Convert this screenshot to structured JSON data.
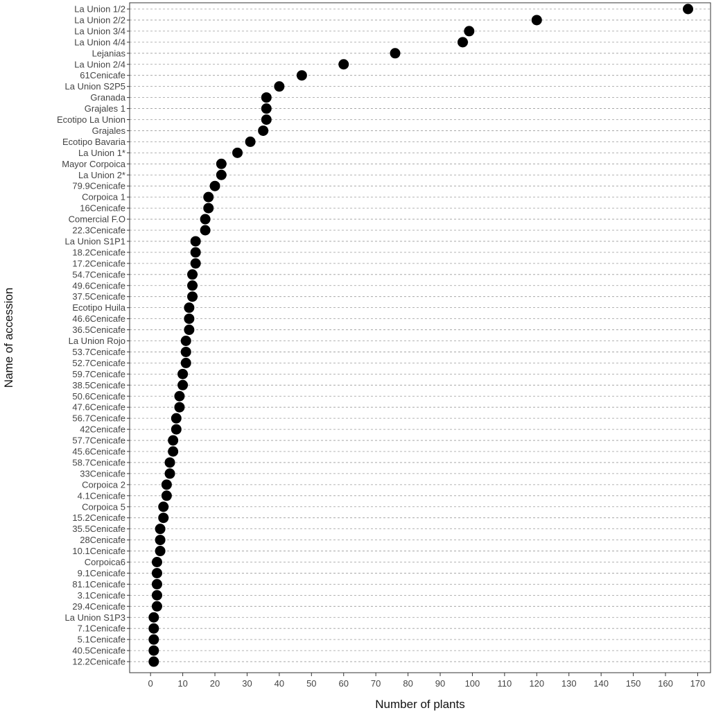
{
  "chart_data": {
    "type": "scatter",
    "xlabel": "Number of plants",
    "ylabel": "Name of accession",
    "xlim": [
      -6.5,
      174
    ],
    "xticks": [
      0,
      10,
      20,
      30,
      40,
      50,
      60,
      70,
      80,
      90,
      100,
      110,
      120,
      130,
      140,
      150,
      160,
      170
    ],
    "grid": "horizontal dashed",
    "legend": "none",
    "point_color": "#000000",
    "categories": [
      "La Union 1/2",
      "La Union 2/2",
      "La Union 3/4",
      "La Union 4/4",
      "Lejanias",
      "La Union 2/4",
      "61Cenicafe",
      "La Union S2P5",
      "Granada",
      "Grajales 1",
      "Ecotipo La Union",
      "Grajales",
      "Ecotipo Bavaria",
      "La Union 1*",
      "Mayor Corpoica",
      "La Union 2*",
      "79.9Cenicafe",
      "Corpoica 1",
      "16Cenicafe",
      "Comercial F.O",
      "22.3Cenicafe",
      "La Union S1P1",
      "18.2Cenicafe",
      "17.2Cenicafe",
      "54.7Cenicafe",
      "49.6Cenicafe",
      "37.5Cenicafe",
      "Ecotipo Huila",
      "46.6Cenicafe",
      "36.5Cenicafe",
      "La Union Rojo",
      "53.7Cenicafe",
      "52.7Cenicafe",
      "59.7Cenicafe",
      "38.5Cenicafe",
      "50.6Cenicafe",
      "47.6Cenicafe",
      "56.7Cenicafe",
      "42Cenicafe",
      "57.7Cenicafe",
      "45.6Cenicafe",
      "58.7Cenicafe",
      "33Cenicafe",
      "Corpoica 2",
      "4.1Cenicafe",
      "Corpoica 5",
      "15.2Cenicafe",
      "35.5Cenicafe",
      "28Cenicafe",
      "10.1Cenicafe",
      "Corpoica6",
      "9.1Cenicafe",
      "81.1Cenicafe",
      "3.1Cenicafe",
      "29.4Cenicafe",
      "La Union S1P3",
      "7.1Cenicafe",
      "5.1Cenicafe",
      "40.5Cenicafe",
      "12.2Cenicafe"
    ],
    "values": [
      167,
      120,
      99,
      97,
      76,
      60,
      47,
      40,
      36,
      36,
      36,
      35,
      31,
      27,
      22,
      22,
      20,
      18,
      18,
      17,
      17,
      14,
      14,
      14,
      13,
      13,
      13,
      12,
      12,
      12,
      11,
      11,
      11,
      10,
      10,
      9,
      9,
      8,
      8,
      7,
      7,
      6,
      6,
      5,
      5,
      4,
      4,
      3,
      3,
      3,
      2,
      2,
      2,
      2,
      2,
      1,
      1,
      1,
      1,
      1
    ]
  }
}
